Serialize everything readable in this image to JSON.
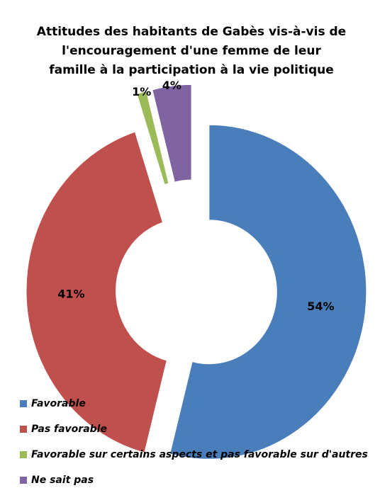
{
  "chart_data": {
    "type": "donut",
    "title": [
      "Attitudes des habitants de Gabès vis-à-vis de",
      "l'encouragement d'une femme de leur",
      "famille à la participation à la vie politique"
    ],
    "categories": [
      "Favorable",
      "Pas favorable",
      "Favorable sur certains aspects et pas favorable sur d'autres",
      "Ne sait pas"
    ],
    "values": [
      54,
      41,
      1,
      4
    ],
    "value_labels": [
      "54%",
      "41%",
      "1%",
      "4%"
    ],
    "colors": [
      "#4a7ebb",
      "#c0504d",
      "#9bbb59",
      "#8064a2"
    ],
    "legend": "bottom"
  }
}
